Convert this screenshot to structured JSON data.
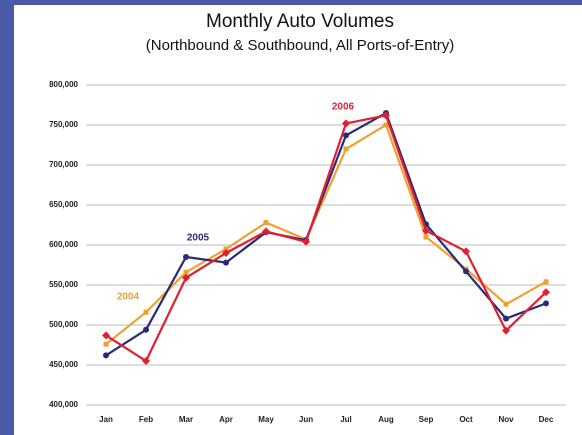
{
  "chart_data": {
    "type": "line",
    "title": "Monthly Auto  Volumes",
    "subtitle": "(Northbound & Southbound, All Ports-of-Entry)",
    "categories": [
      "Jan",
      "Feb",
      "Mar",
      "Apr",
      "May",
      "Jun",
      "Jul",
      "Aug",
      "Sep",
      "Oct",
      "Nov",
      "Dec"
    ],
    "series": [
      {
        "name": "2004",
        "color": "#f0a030",
        "marker": "square",
        "values": [
          476000,
          516000,
          566000,
          595000,
          628000,
          607000,
          720000,
          750000,
          610000,
          570000,
          526000,
          554000
        ]
      },
      {
        "name": "2005",
        "color": "#2b2a7a",
        "marker": "circle",
        "values": [
          462000,
          494000,
          585000,
          578000,
          616000,
          606000,
          737000,
          765000,
          626000,
          567000,
          508000,
          527000
        ]
      },
      {
        "name": "2006",
        "color": "#e02030",
        "marker": "diamond",
        "values": [
          487000,
          455000,
          559000,
          590000,
          617000,
          604000,
          752000,
          762000,
          618000,
          592000,
          493000,
          541000
        ]
      }
    ],
    "ylim": [
      400000,
      800000
    ],
    "yticks": [
      {
        "value": 400000,
        "label": "400,000"
      },
      {
        "value": 450000,
        "label": "450,000"
      },
      {
        "value": 500000,
        "label": "500,000"
      },
      {
        "value": 550000,
        "label": "550,000"
      },
      {
        "value": 600000,
        "label": "600,000"
      },
      {
        "value": 650000,
        "label": "650,000"
      },
      {
        "value": 700000,
        "label": "700,000"
      },
      {
        "value": 750000,
        "label": "750,000"
      },
      {
        "value": 800000,
        "label": "800,000"
      }
    ],
    "grid": true
  }
}
